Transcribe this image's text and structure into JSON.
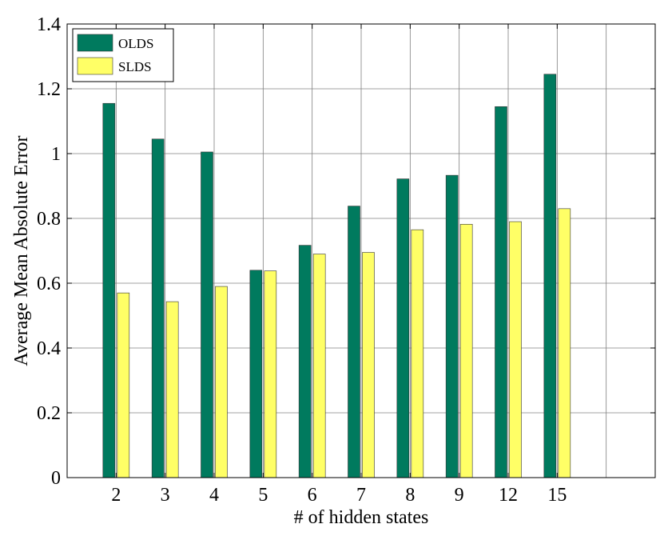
{
  "chart_data": {
    "type": "bar",
    "xlabel": "# of hidden states",
    "ylabel": "Average Mean Absolute Error",
    "categories": [
      "2",
      "3",
      "4",
      "5",
      "6",
      "7",
      "8",
      "9",
      "12",
      "15"
    ],
    "series": [
      {
        "name": "OLDS",
        "color": "#007a5e",
        "values": [
          1.155,
          1.045,
          1.005,
          0.64,
          0.717,
          0.838,
          0.922,
          0.933,
          1.145,
          1.245
        ]
      },
      {
        "name": "SLDS",
        "color": "#ffff66",
        "values": [
          0.57,
          0.543,
          0.59,
          0.638,
          0.69,
          0.695,
          0.765,
          0.782,
          0.79,
          0.83
        ]
      }
    ],
    "ylim": [
      0,
      1.4
    ],
    "yticks": [
      "0",
      "0.2",
      "0.4",
      "0.6",
      "0.8",
      "1",
      "1.2",
      "1.4"
    ],
    "ytick_values": [
      0,
      0.2,
      0.4,
      0.6,
      0.8,
      1.0,
      1.2,
      1.4
    ],
    "grid": true,
    "legend_position": "top-left"
  }
}
